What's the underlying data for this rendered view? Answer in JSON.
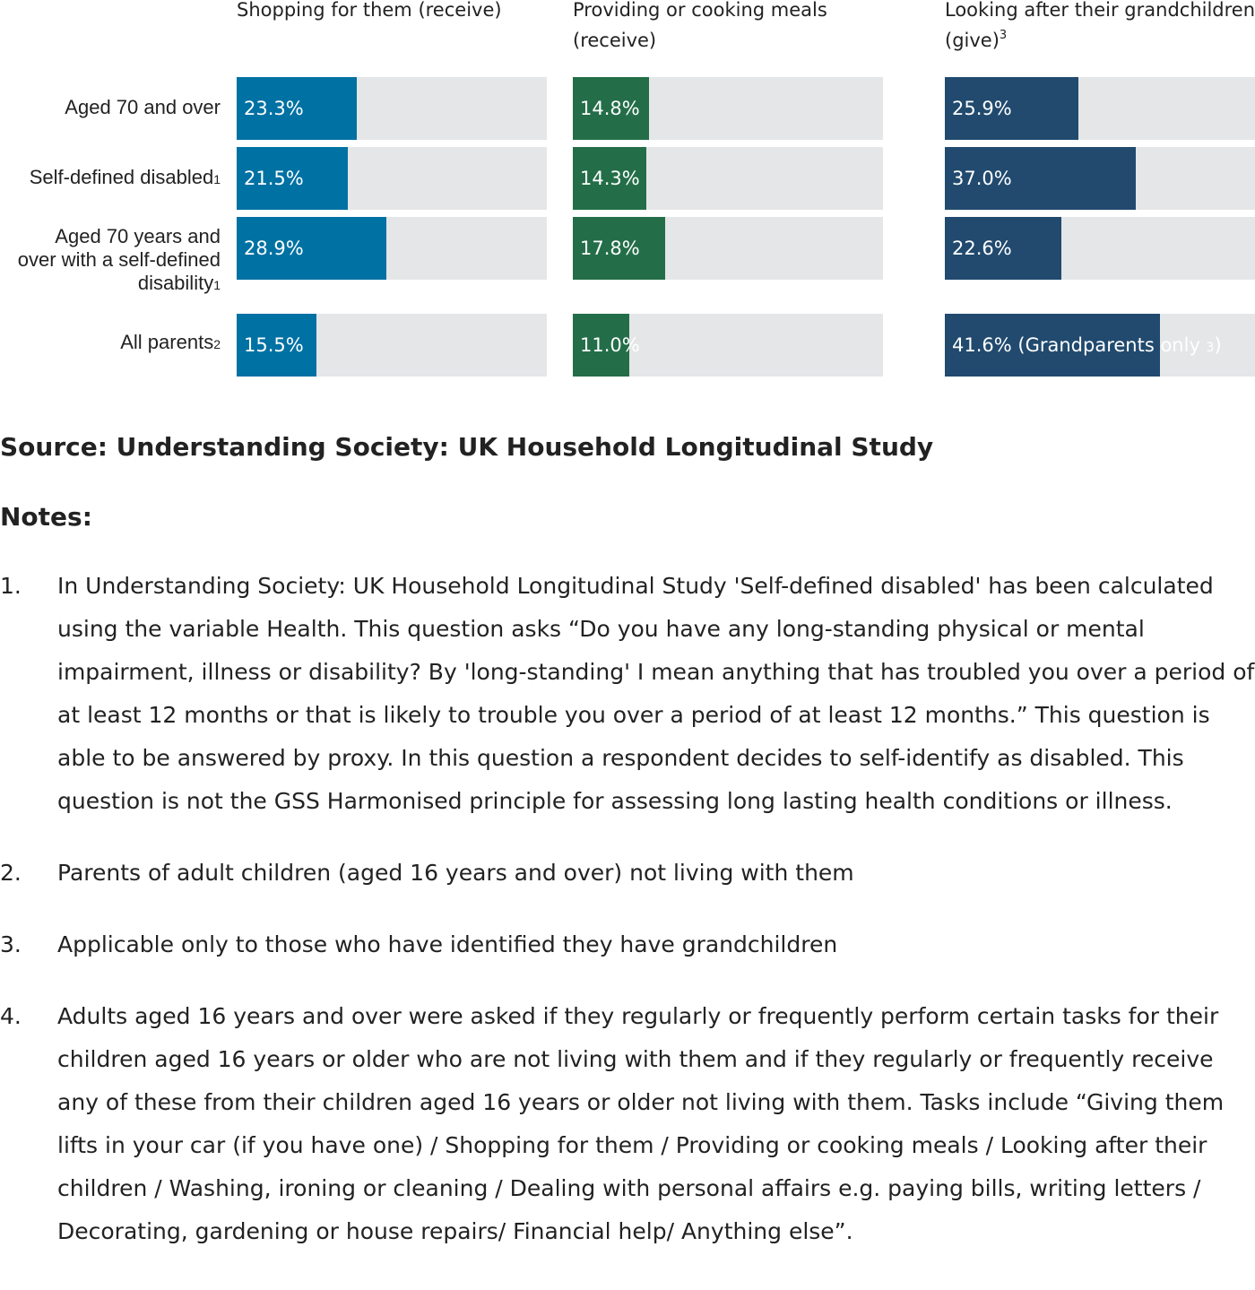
{
  "chart_data": {
    "type": "bar",
    "orientation": "horizontal",
    "xlim": [
      0,
      100
    ],
    "categories": [
      {
        "label": "Aged 70 and over",
        "footnote": ""
      },
      {
        "label": "Self-defined disabled",
        "footnote": "1"
      },
      {
        "label": "Aged 70 years and over with a self-defined disability",
        "footnote": "1"
      },
      {
        "label": "All parents",
        "footnote": "2"
      }
    ],
    "panels": [
      {
        "title": "Shopping for them (receive)",
        "title_sup": "",
        "color": "#0071a3",
        "values": [
          23.3,
          21.5,
          28.9,
          15.5
        ],
        "labels": [
          "23.3%",
          "21.5%",
          "28.9%",
          "15.5%"
        ],
        "label_notes": [
          "",
          "",
          "",
          ""
        ]
      },
      {
        "title": "Providing or cooking meals (receive)",
        "title_sup": "",
        "color": "#236e48",
        "values": [
          14.8,
          14.3,
          17.8,
          11.0
        ],
        "labels": [
          "14.8%",
          "14.3%",
          "17.8%",
          "11.0%"
        ],
        "label_notes": [
          "",
          "",
          "",
          ""
        ]
      },
      {
        "title": "Looking after their grandchildren (give)",
        "title_sup": "3",
        "color": "#214a6e",
        "values": [
          25.9,
          37.0,
          22.6,
          41.6
        ],
        "labels": [
          "25.9%",
          "37.0%",
          "22.6%",
          "41.6% (Grandparents only "
        ],
        "label_notes": [
          "",
          "",
          "",
          "3"
        ],
        "label_tails": [
          "",
          "",
          "",
          ")"
        ]
      }
    ]
  },
  "source": "Source: Understanding Society: UK Household Longitudinal Study",
  "notes_heading": "Notes:",
  "notes": [
    {
      "num": "1.",
      "text": "In Understanding Society: UK Household Longitudinal Study 'Self-defined disabled' has been calculated using the variable Health. This question asks “Do you have any long-standing physical or mental impairment, illness or disability? By 'long-standing' I mean anything that has troubled you over a period of at least 12 months or that is likely to trouble you over a period of at least 12 months.” This question is able to be answered by proxy. In this question a respondent decides to self-identify as disabled. This question is not the GSS Harmonised principle for assessing long lasting health conditions or illness."
    },
    {
      "num": "2.",
      "text": "Parents of adult children (aged 16 years and over) not living with them"
    },
    {
      "num": "3.",
      "text": "Applicable only to those who have identified they have grandchildren"
    },
    {
      "num": "4.",
      "text": "Adults aged 16 years and over were asked if they regularly or frequently perform certain tasks for their children aged 16 years or older who are not living with them and if they regularly or frequently receive any of these from their children aged 16 years or older not living with them. Tasks include “Giving them lifts in your car (if you have one) / Shopping for them / Providing or cooking meals / Looking after their children / Washing, ironing or cleaning / Dealing with personal affairs e.g. paying bills, writing letters / Decorating, gardening or house repairs/ Financial help/ Anything else”."
    }
  ]
}
